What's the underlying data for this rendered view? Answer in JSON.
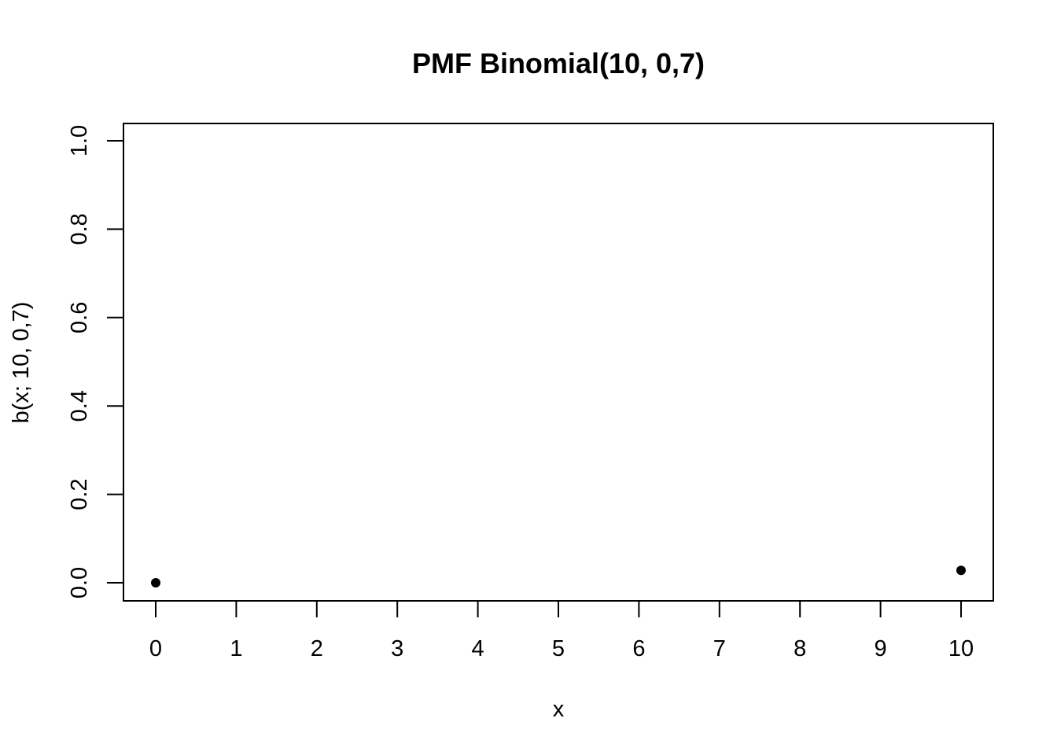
{
  "chart_data": {
    "type": "scatter",
    "title": "PMF Binomial(10, 0,7)",
    "xlabel": "x",
    "ylabel": "b(x; 10, 0,7)",
    "x_ticks": [
      "0",
      "1",
      "2",
      "3",
      "4",
      "5",
      "6",
      "7",
      "8",
      "9",
      "10"
    ],
    "y_ticks": [
      "0.0",
      "0.2",
      "0.4",
      "0.6",
      "0.8",
      "1.0"
    ],
    "xlim": [
      0,
      10
    ],
    "ylim": [
      0,
      1
    ],
    "grid": false,
    "series": [
      {
        "x": [
          0,
          10
        ],
        "y": [
          0.0,
          0.028
        ],
        "color": "#000000",
        "marker": "filled-circle"
      }
    ]
  }
}
